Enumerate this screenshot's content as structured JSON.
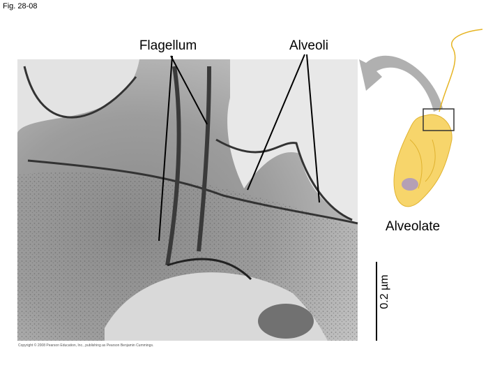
{
  "figure": {
    "number": "Fig. 28-08",
    "labels": {
      "flagellum": "Flagellum",
      "alveoli": "Alveoli",
      "organism": "Alveolate"
    },
    "scale_bar": "0.2 µm",
    "credit": "Copyright © 2008 Pearson Education, Inc., publishing as Pearson Benjamin Cummings."
  }
}
